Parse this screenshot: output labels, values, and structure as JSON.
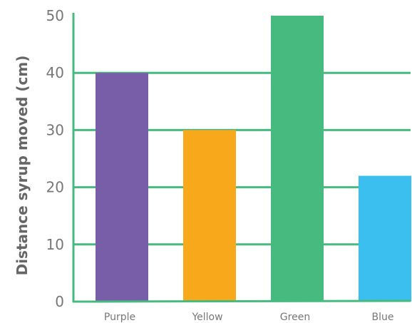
{
  "chart_data": {
    "type": "bar",
    "title": "",
    "xlabel": "",
    "ylabel": "Distance syrup moved (cm)",
    "categories": [
      "Purple",
      "Yellow",
      "Green",
      "Blue"
    ],
    "values": [
      40,
      30,
      50,
      22
    ],
    "ylim": [
      0,
      50
    ],
    "yticks": [
      0,
      10,
      20,
      30,
      40,
      50
    ],
    "grid": true,
    "legend": "none",
    "colors": {
      "bars": [
        "#785ea8",
        "#f7a81b",
        "#47ba80",
        "#3bbfef"
      ],
      "grid": "#47ba80",
      "axis": "#47ba80"
    }
  }
}
